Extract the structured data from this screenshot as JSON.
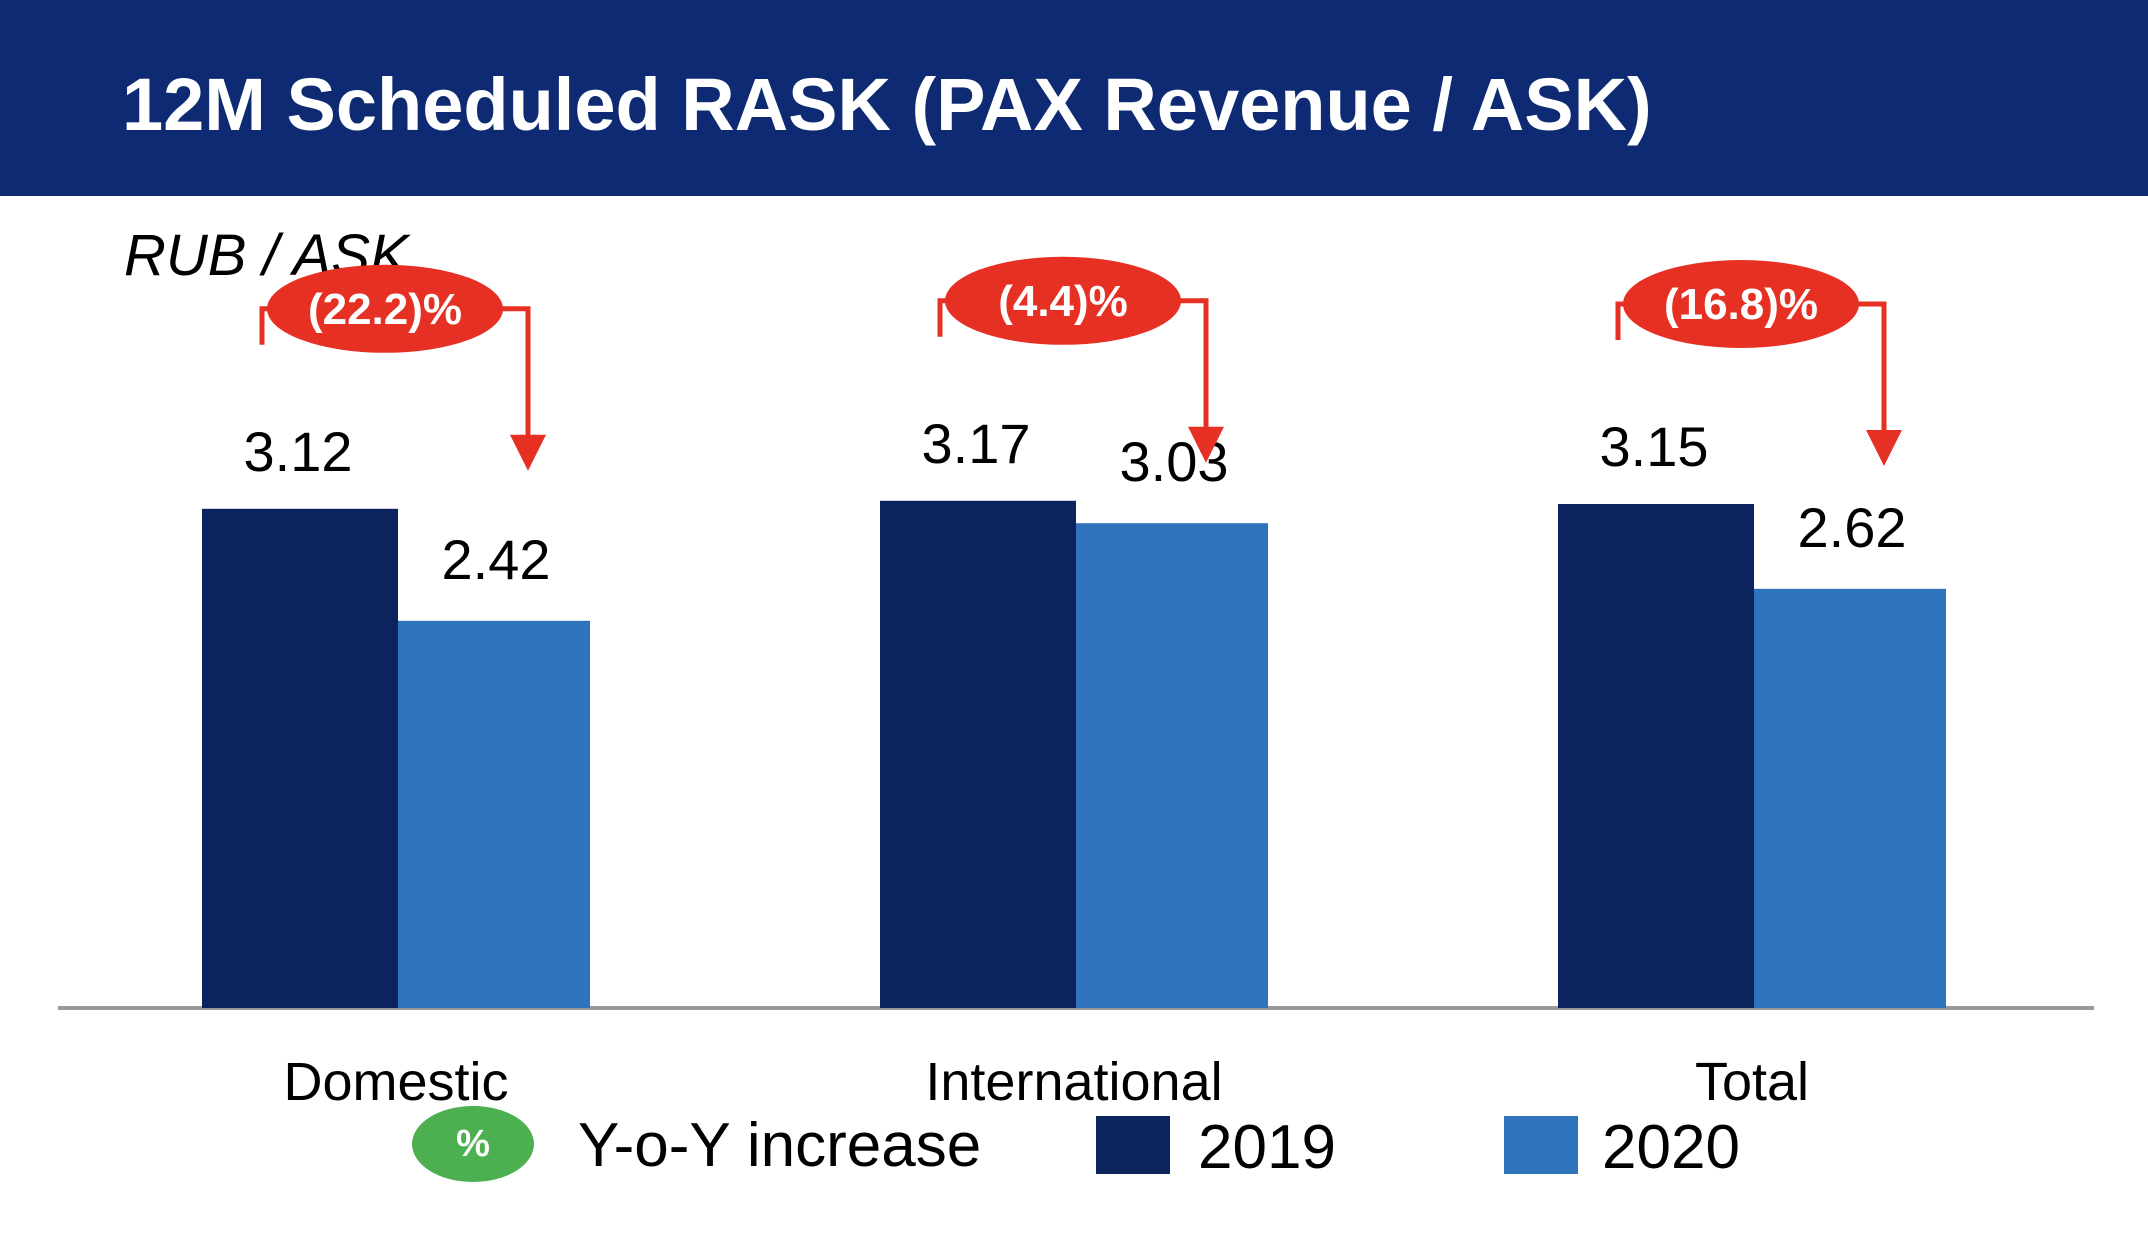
{
  "header": {
    "title": "12M Scheduled RASK (PAX Revenue / ASK)"
  },
  "unit_label": "RUB / ASK",
  "legend": {
    "badge_symbol": "%",
    "badge_label": "Y-o-Y increase",
    "series_2019": "2019",
    "series_2020": "2020"
  },
  "colors": {
    "header": "#0d2a73",
    "series_2019": "#0c245e",
    "series_2020": "#2f73bd",
    "change_badge": "#e53023",
    "legend_badge": "#4caf50"
  },
  "chart_data": {
    "type": "bar",
    "title": "12M Scheduled RASK (PAX Revenue / ASK)",
    "ylabel": "RUB / ASK",
    "categories": [
      "Domestic",
      "International",
      "Total"
    ],
    "series": [
      {
        "name": "2019",
        "values": [
          3.12,
          3.17,
          3.15
        ]
      },
      {
        "name": "2020",
        "values": [
          2.42,
          3.03,
          2.62
        ]
      }
    ],
    "value_labels": {
      "2019": [
        "3.12",
        "3.17",
        "3.15"
      ],
      "2020": [
        "2.42",
        "3.03",
        "2.62"
      ]
    },
    "yoy_change": [
      "(22.2)%",
      "(4.4)%",
      "(16.8)%"
    ],
    "legend": "bottom"
  }
}
